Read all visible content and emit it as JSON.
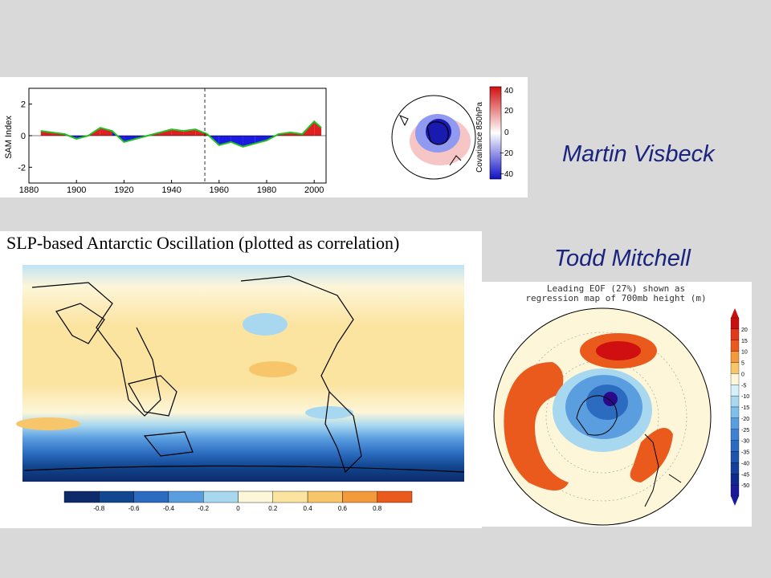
{
  "credits": {
    "top": "Martin Visbeck",
    "middle": "Todd Mitchell"
  },
  "sam_panel": {
    "ylabel": "SAM Index",
    "cbar_label": "Covariance 850hPa",
    "cbar_ticks": [
      "40",
      "20",
      "0",
      "−20",
      "−40"
    ]
  },
  "aao_panel": {
    "title": "SLP-based Antarctic Oscillation (plotted as correlation)",
    "colorbar_ticks": [
      "-0.8",
      "-0.6",
      "-0.4",
      "-0.2",
      "0",
      "0.2",
      "0.4",
      "0.6",
      "0.8"
    ],
    "colors": [
      "#0d2a6b",
      "#12468f",
      "#2b6cc0",
      "#5b9ee0",
      "#a8d8f0",
      "#fdf6d8",
      "#fbe3a0",
      "#f8c66a",
      "#f39a3c",
      "#ea5a1c"
    ]
  },
  "eof_panel": {
    "title_line1": "Leading EOF (27%) shown as",
    "title_line2": "regression map of 700mb height (m)",
    "colorbar_ticks": [
      "20",
      "15",
      "10",
      "5",
      "0",
      "-5",
      "-10",
      "-15",
      "-20",
      "-25",
      "-30",
      "-35",
      "-40",
      "-45",
      "-50"
    ]
  },
  "chart_data": {
    "type": "area",
    "ylabel": "SAM Index",
    "x_ticks": [
      "1880",
      "1900",
      "1920",
      "1940",
      "1960",
      "1980",
      "2000"
    ],
    "y_ticks": [
      "2",
      "0",
      "-2"
    ],
    "xlim": [
      1880,
      2005
    ],
    "ylim": [
      -3,
      3
    ],
    "x": [
      1885,
      1890,
      1895,
      1900,
      1905,
      1910,
      1915,
      1920,
      1925,
      1930,
      1935,
      1940,
      1945,
      1950,
      1955,
      1960,
      1965,
      1970,
      1975,
      1980,
      1985,
      1990,
      1995,
      2000,
      2003
    ],
    "smoothed": [
      0.3,
      0.2,
      0.1,
      -0.2,
      0.0,
      0.5,
      0.3,
      -0.4,
      -0.2,
      0.0,
      0.2,
      0.4,
      0.3,
      0.4,
      0.1,
      -0.6,
      -0.4,
      -0.7,
      -0.5,
      -0.3,
      0.1,
      0.2,
      0.1,
      0.9,
      0.5
    ]
  }
}
